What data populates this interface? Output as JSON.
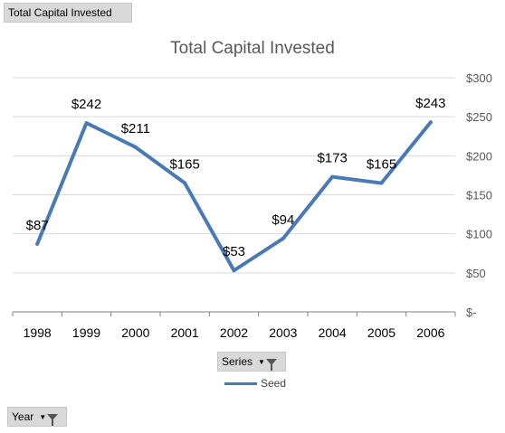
{
  "pivot": {
    "value_field": "Total Capital Invested",
    "series_field": "Series",
    "axis_field": "Year"
  },
  "colors": {
    "series": "#4a7ab5",
    "grid": "#d9d9d9",
    "axis": "#808080",
    "text": "#000000",
    "title": "#595959"
  },
  "chart_data": {
    "type": "line",
    "title": "Total Capital Invested",
    "xlabel": "",
    "ylabel": "",
    "categories": [
      "1998",
      "1999",
      "2000",
      "2001",
      "2002",
      "2003",
      "2004",
      "2005",
      "2006"
    ],
    "series": [
      {
        "name": "Seed",
        "values": [
          87,
          242,
          211,
          165,
          53,
          94,
          173,
          165,
          243
        ]
      }
    ],
    "data_labels": [
      "$87",
      "$242",
      "$211",
      "$165",
      "$53",
      "$94",
      "$173",
      "$165",
      "$243"
    ],
    "ylim": [
      0,
      300
    ],
    "yticks": [
      0,
      50,
      100,
      150,
      200,
      250,
      300
    ],
    "ytick_labels": [
      "$-",
      "$50",
      "$100",
      "$150",
      "$200",
      "$250",
      "$300"
    ],
    "y_axis_side": "right",
    "grid": true,
    "legend": "bottom"
  }
}
